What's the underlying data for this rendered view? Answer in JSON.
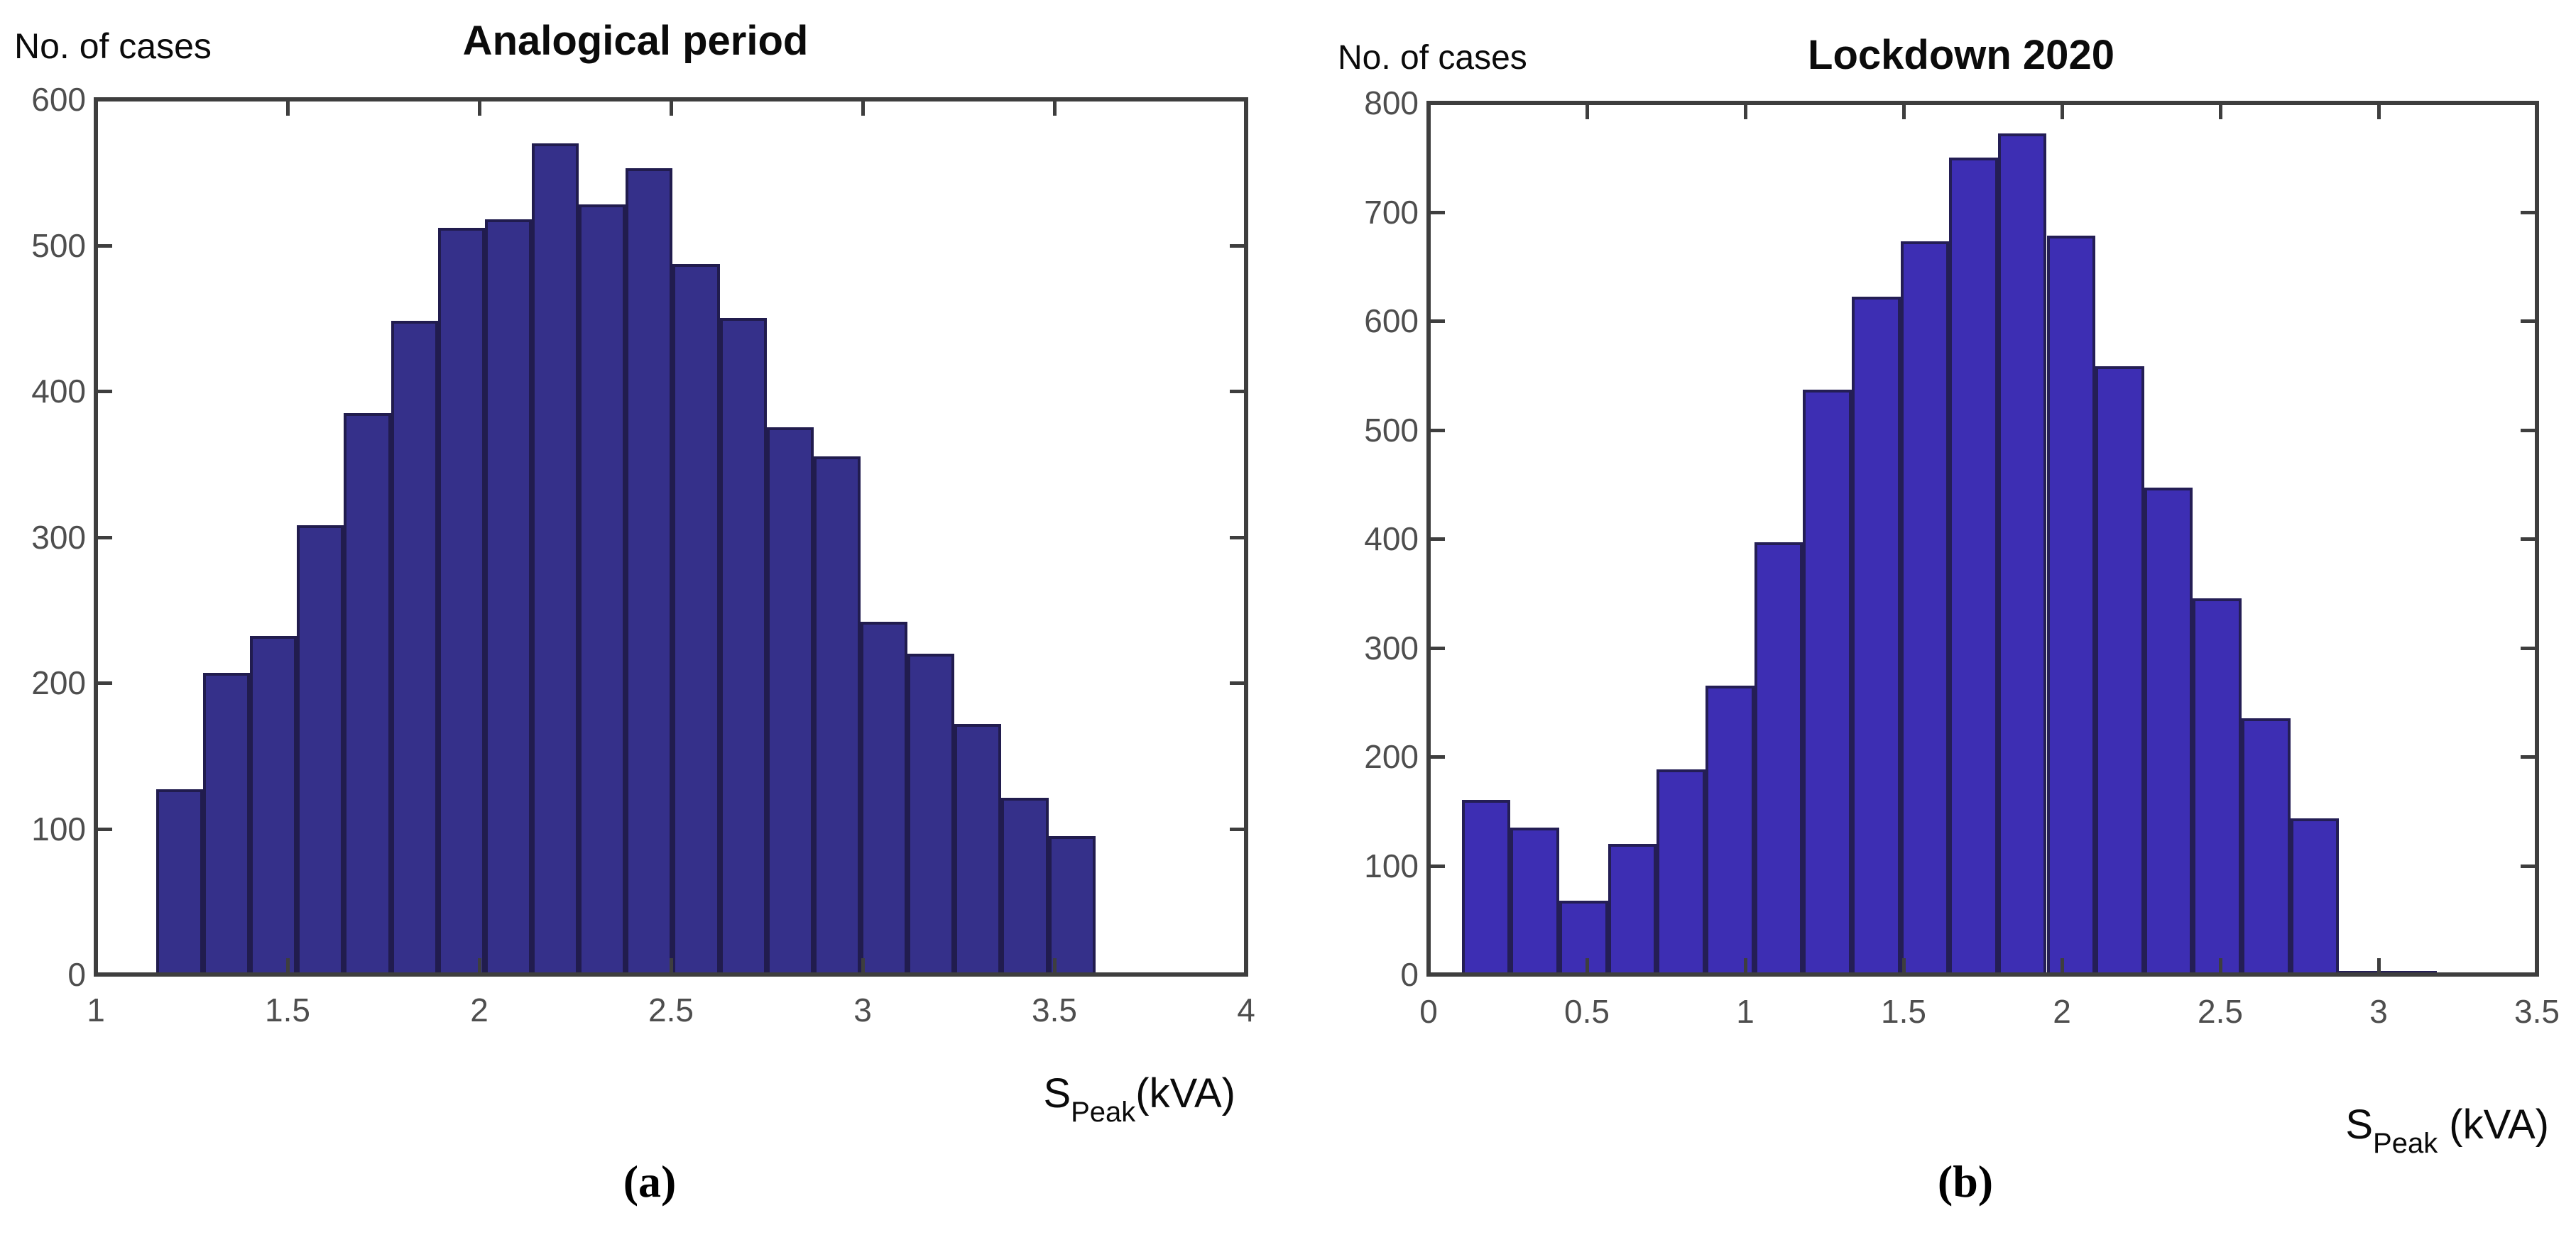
{
  "page": {
    "background": "#ffffff"
  },
  "colors": {
    "axis": "#3e3e3e",
    "tick_label": "#4e4e4e",
    "text": "#0b0b0b"
  },
  "chart_data": [
    {
      "type": "bar",
      "title": "Analogical period",
      "ylabel": "No. of cases",
      "xlabel_main": "S",
      "xlabel_sub": "Peak",
      "xlabel_unit": "(kVA)",
      "caption": "(a)",
      "xlim": [
        1,
        4
      ],
      "ylim": [
        0,
        600
      ],
      "xticks": [
        1,
        1.5,
        2,
        2.5,
        3,
        3.5,
        4
      ],
      "xtick_labels": [
        "1",
        "1.5",
        "2",
        "2.5",
        "3",
        "3.5",
        "4"
      ],
      "yticks": [
        0,
        100,
        200,
        300,
        400,
        500,
        600
      ],
      "ytick_labels": [
        "0",
        "100",
        "200",
        "300",
        "400",
        "500",
        "600"
      ],
      "grid": false,
      "legend": null,
      "bin_start": 1.157,
      "bin_width": 0.1225,
      "values": [
        127,
        207,
        232,
        308,
        385,
        448,
        512,
        518,
        570,
        528,
        553,
        487,
        450,
        375,
        355,
        242,
        220,
        172,
        121,
        95
      ],
      "bar_fill": "#35308a",
      "bar_edge": "#211c4e"
    },
    {
      "type": "bar",
      "title": "Lockdown 2020",
      "ylabel": "No. of cases",
      "xlabel_main": "S",
      "xlabel_sub": "Peak",
      "xlabel_unit": " (kVA)",
      "caption": "(b)",
      "xlim": [
        0,
        3.5
      ],
      "ylim": [
        0,
        800
      ],
      "xticks": [
        0,
        0.5,
        1,
        1.5,
        2,
        2.5,
        3,
        3.5
      ],
      "xtick_labels": [
        "0",
        "0.5",
        "1",
        "1.5",
        "2",
        "2.5",
        "3",
        "3.5"
      ],
      "yticks": [
        0,
        100,
        200,
        300,
        400,
        500,
        600,
        700,
        800
      ],
      "ytick_labels": [
        "0",
        "100",
        "200",
        "300",
        "400",
        "500",
        "600",
        "700",
        "800"
      ],
      "grid": false,
      "legend": null,
      "bin_start": 0.105,
      "bin_width": 0.1539,
      "values": [
        160,
        135,
        68,
        120,
        188,
        265,
        397,
        537,
        622,
        673,
        750,
        772,
        678,
        558,
        447,
        345,
        235,
        143,
        3,
        3
      ],
      "bar_fill": "#3d2eb3",
      "bar_edge": "#241e55"
    }
  ]
}
